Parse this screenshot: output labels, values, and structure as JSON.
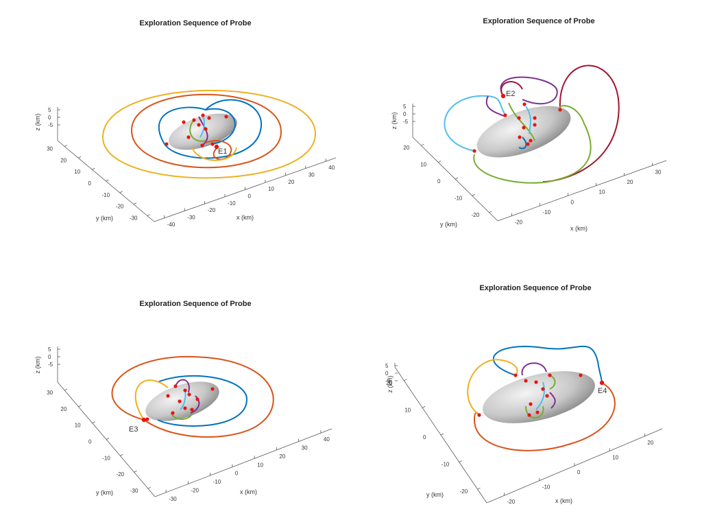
{
  "colors": {
    "blue": "#0072bd",
    "orange": "#d95319",
    "yellow": "#edb120",
    "purple": "#7e2f8e",
    "green": "#77ac30",
    "cyan": "#4dbeee",
    "maroon": "#a2142f",
    "marker": "#e8150f",
    "body": "#c8c8c8"
  },
  "chart_data": [
    {
      "type": "line",
      "title": "Exploration Sequence of Probe",
      "xlabel": "x (km)",
      "ylabel": "y (km)",
      "zlabel": "z (km)",
      "xticks": [
        "-40",
        "-30",
        "-20",
        "-10",
        "0",
        "10",
        "20",
        "30",
        "40"
      ],
      "yticks": [
        "-30",
        "-20",
        "-10",
        "0",
        "10",
        "20",
        "30"
      ],
      "zticks": [
        "5",
        "0",
        "-5"
      ],
      "annotation": "E1",
      "series_colors": [
        "yellow",
        "orange",
        "blue",
        "purple",
        "green",
        "cyan"
      ]
    },
    {
      "type": "line",
      "title": "Exploration Sequence of Probe",
      "xlabel": "x (km)",
      "ylabel": "y (km)",
      "zlabel": "z (km)",
      "xticks": [
        "-20",
        "-10",
        "0",
        "10",
        "20",
        "30"
      ],
      "yticks": [
        "-20",
        "-10",
        "0",
        "10",
        "20"
      ],
      "zticks": [
        "5",
        "0",
        "-5"
      ],
      "annotation": "E2",
      "series_colors": [
        "maroon",
        "green",
        "purple",
        "cyan",
        "blue",
        "orange"
      ]
    },
    {
      "type": "line",
      "title": "Exploration Sequence of Probe",
      "xlabel": "x (km)",
      "ylabel": "y (km)",
      "zlabel": "z (km)",
      "xticks": [
        "-30",
        "-20",
        "-10",
        "0",
        "10",
        "20",
        "30",
        "40"
      ],
      "yticks": [
        "-30",
        "-20",
        "-10",
        "0",
        "10",
        "20",
        "30"
      ],
      "zticks": [
        "5",
        "0",
        "-5"
      ],
      "annotation": "E3",
      "series_colors": [
        "orange",
        "blue",
        "yellow",
        "purple",
        "green",
        "cyan"
      ]
    },
    {
      "type": "line",
      "title": "Exploration Sequence of Probe",
      "xlabel": "x (km)",
      "ylabel": "y (km)",
      "zlabel": "z (km)",
      "xticks": [
        "-20",
        "-10",
        "0",
        "10",
        "20"
      ],
      "yticks": [
        "-20",
        "-10",
        "0",
        "10",
        "20"
      ],
      "zticks": [
        "5",
        "0",
        "-5"
      ],
      "annotation": "E4",
      "series_colors": [
        "orange",
        "blue",
        "yellow",
        "purple",
        "green",
        "cyan"
      ]
    }
  ]
}
